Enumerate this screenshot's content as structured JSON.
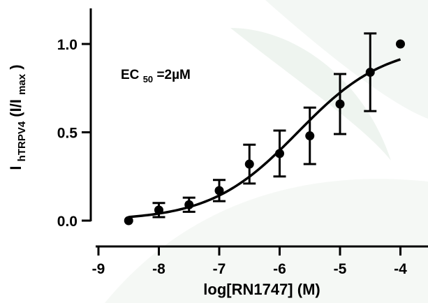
{
  "chart_data": {
    "type": "scatter",
    "title": "",
    "xlabel": "log[RN1747] (M)",
    "ylabel": {
      "main": "I",
      "main_sub": "hTRPV4",
      "paren_open": "(I/I",
      "paren_sub": "max",
      "paren_close": ")"
    },
    "annotation": {
      "main": "EC",
      "sub": "50",
      "rest": "=2µM"
    },
    "xlim": [
      -9,
      -4
    ],
    "ylim": [
      0,
      1
    ],
    "x_ticks": [
      -9,
      -8,
      -7,
      -6,
      -5,
      -4
    ],
    "x_tick_labels": [
      "-9",
      "-8",
      "-7",
      "-6",
      "-5",
      "-4"
    ],
    "y_ticks": [
      0,
      0.5,
      1
    ],
    "y_tick_labels": [
      "0.0",
      "0.5",
      "1.0"
    ],
    "grid": false,
    "series": [
      {
        "points": [
          {
            "x": -8.5,
            "y": 0.0,
            "err": 0
          },
          {
            "x": -8.0,
            "y": 0.06,
            "err": 0.04
          },
          {
            "x": -7.5,
            "y": 0.09,
            "err": 0.04
          },
          {
            "x": -7.0,
            "y": 0.17,
            "err": 0.06
          },
          {
            "x": -6.5,
            "y": 0.32,
            "err": 0.11
          },
          {
            "x": -6.0,
            "y": 0.38,
            "err": 0.13
          },
          {
            "x": -5.5,
            "y": 0.48,
            "err": 0.16
          },
          {
            "x": -5.0,
            "y": 0.66,
            "err": 0.17
          },
          {
            "x": -4.5,
            "y": 0.84,
            "err": 0.22
          },
          {
            "x": -4.0,
            "y": 1.0,
            "err": 0
          }
        ]
      }
    ],
    "fit": {
      "model": "hill",
      "log_ec50": -5.7,
      "hill": 0.6,
      "top": 1.0,
      "bottom": 0.0
    },
    "colors": {
      "marker": "#000000",
      "line": "#000000",
      "axis": "#000000"
    }
  }
}
